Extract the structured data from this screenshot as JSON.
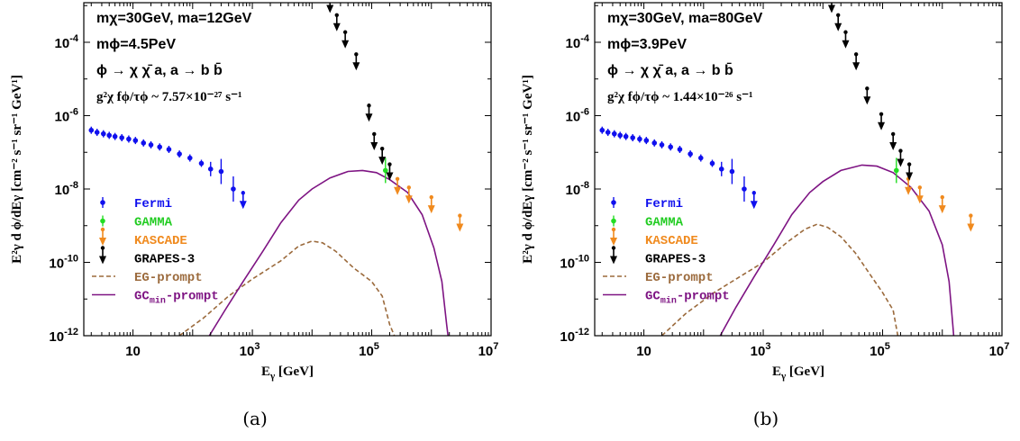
{
  "panel_labels": [
    "(a)",
    "(b)"
  ],
  "chart_data": [
    {
      "type": "scatter",
      "panel": "(a)",
      "xlabel_base": "E",
      "xlabel_sub": "γ",
      "xlabel_unit": "[GeV]",
      "ylabel": "E²γ d ϕ/dEγ [cm⁻² s⁻¹ sr⁻¹ GeV¹]",
      "xscale": "log",
      "yscale": "log",
      "xlim": [
        1.5,
        10000000
      ],
      "ylim": [
        1e-12,
        0.0012
      ],
      "xticks": [
        {
          "v": 10,
          "b": "10",
          "e": ""
        },
        {
          "v": 1000,
          "b": "10",
          "e": "3"
        },
        {
          "v": 100000,
          "b": "10",
          "e": "5"
        },
        {
          "v": 10000000,
          "b": "10",
          "e": "7"
        }
      ],
      "yticks": [
        {
          "v": 1e-12,
          "b": "10",
          "e": "-12"
        },
        {
          "v": 1e-10,
          "b": "10",
          "e": "-10"
        },
        {
          "v": 1e-08,
          "b": "10",
          "e": "-8"
        },
        {
          "v": 1e-06,
          "b": "10",
          "e": "-6"
        },
        {
          "v": 0.0001,
          "b": "10",
          "e": "-4"
        }
      ],
      "annotation": {
        "line1": "mχ=30GeV, ma=12GeV",
        "line2": "mϕ=4.5PeV",
        "line3": "ϕ → χ χ̄ a, a → b b̄",
        "line4": "g²χ fϕ/τϕ ~ 7.57×10⁻²⁷ s⁻¹"
      },
      "legend_position": "lower-left",
      "series": [
        {
          "name": "Fermi",
          "color": "#1010ee",
          "marker": "point-errorbar",
          "points": [
            [
              2,
              4e-07
            ],
            [
              2.5,
              3.5e-07
            ],
            [
              3.2,
              3.2e-07
            ],
            [
              4,
              2.9e-07
            ],
            [
              5,
              2.7e-07
            ],
            [
              6.5,
              2.5e-07
            ],
            [
              8.5,
              2.3e-07
            ],
            [
              11,
              2.1e-07
            ],
            [
              15,
              1.8e-07
            ],
            [
              20,
              1.6e-07
            ],
            [
              28,
              1.4e-07
            ],
            [
              40,
              1.2e-07
            ],
            [
              60,
              9e-08
            ],
            [
              90,
              7e-08
            ],
            [
              140,
              5e-08
            ],
            [
              200,
              3.5e-08
            ],
            [
              300,
              3e-08
            ],
            [
              480,
              1e-08
            ]
          ],
          "upper_limits": [
            [
              700,
              5e-09
            ]
          ]
        },
        {
          "name": "GAMMA",
          "color": "#22dd22",
          "marker": "point-errorbar",
          "points": [
            [
              170000,
              3.2e-08
            ]
          ]
        },
        {
          "name": "KASCADE",
          "color": "#f08a1e",
          "marker": "upper-limit",
          "upper_limits": [
            [
              270000,
              1.2e-08
            ],
            [
              420000,
              7e-09
            ],
            [
              1000000,
              3.8e-09
            ],
            [
              3000000,
              1.2e-09
            ]
          ]
        },
        {
          "name": "GRAPES-3",
          "color": "#000000",
          "marker": "upper-limit",
          "upper_limits": [
            [
              20000,
              0.0011
            ],
            [
              26000,
              0.00035
            ],
            [
              36000,
              0.00012
            ],
            [
              55000,
              3e-05
            ],
            [
              90000,
              1.2e-06
            ],
            [
              110000,
              2e-07
            ],
            [
              150000,
              8e-08
            ],
            [
              200000,
              3e-08
            ]
          ]
        },
        {
          "name": "EG-prompt",
          "color": "#9b6a3c",
          "line": "dashed",
          "points": [
            [
              60,
              1e-12
            ],
            [
              150,
              3e-12
            ],
            [
              400,
              1.2e-11
            ],
            [
              1000,
              3.5e-11
            ],
            [
              3000,
              1.1e-10
            ],
            [
              6000,
              2.8e-10
            ],
            [
              10000,
              3.8e-10
            ],
            [
              15000,
              3.4e-10
            ],
            [
              25000,
              2e-10
            ],
            [
              50000,
              7e-11
            ],
            [
              100000,
              3e-11
            ],
            [
              150000,
              1.2e-11
            ],
            [
              200000,
              2e-12
            ],
            [
              240000,
              1e-12
            ]
          ]
        },
        {
          "name": "GCmin-prompt",
          "color": "#7e1483",
          "line": "solid",
          "points": [
            [
              190,
              1e-12
            ],
            [
              350,
              5e-12
            ],
            [
              700,
              3e-11
            ],
            [
              1500,
              2e-10
            ],
            [
              3000,
              1.2e-09
            ],
            [
              6000,
              5e-09
            ],
            [
              10000,
              1e-08
            ],
            [
              20000,
              2e-08
            ],
            [
              40000,
              3e-08
            ],
            [
              70000,
              3.2e-08
            ],
            [
              120000,
              2.8e-08
            ],
            [
              200000,
              1.8e-08
            ],
            [
              400000,
              8e-09
            ],
            [
              700000,
              2e-09
            ],
            [
              1100000,
              2.5e-10
            ],
            [
              1500000,
              3e-11
            ],
            [
              1800000,
              2e-12
            ],
            [
              1900000,
              1e-12
            ]
          ]
        }
      ]
    },
    {
      "type": "scatter",
      "panel": "(b)",
      "xlabel_base": "E",
      "xlabel_sub": "γ",
      "xlabel_unit": "[GeV]",
      "ylabel": "E²γ d ϕ/dEγ [cm⁻² s⁻¹ sr⁻¹ GeV¹]",
      "xscale": "log",
      "yscale": "log",
      "xlim": [
        1.5,
        10000000
      ],
      "ylim": [
        1e-12,
        0.0012
      ],
      "xticks": [
        {
          "v": 10,
          "b": "10",
          "e": ""
        },
        {
          "v": 1000,
          "b": "10",
          "e": "3"
        },
        {
          "v": 100000,
          "b": "10",
          "e": "5"
        },
        {
          "v": 10000000,
          "b": "10",
          "e": "7"
        }
      ],
      "yticks": [
        {
          "v": 1e-12,
          "b": "10",
          "e": "-12"
        },
        {
          "v": 1e-10,
          "b": "10",
          "e": "-10"
        },
        {
          "v": 1e-08,
          "b": "10",
          "e": "-8"
        },
        {
          "v": 1e-06,
          "b": "10",
          "e": "-6"
        },
        {
          "v": 0.0001,
          "b": "10",
          "e": "-4"
        }
      ],
      "annotation": {
        "line1": "mχ=30GeV, ma=80GeV",
        "line2": "mϕ=3.9PeV",
        "line3": "ϕ → χ χ̄ a, a → b b̄",
        "line4": "g²χ fϕ/τϕ ~ 1.44×10⁻²⁶ s⁻¹"
      },
      "legend_position": "lower-left",
      "series": [
        {
          "name": "Fermi",
          "color": "#1010ee",
          "marker": "point-errorbar",
          "points": [
            [
              2,
              4e-07
            ],
            [
              2.5,
              3.5e-07
            ],
            [
              3.2,
              3.2e-07
            ],
            [
              4,
              2.9e-07
            ],
            [
              5,
              2.7e-07
            ],
            [
              6.5,
              2.5e-07
            ],
            [
              8.5,
              2.3e-07
            ],
            [
              11,
              2.1e-07
            ],
            [
              15,
              1.8e-07
            ],
            [
              20,
              1.6e-07
            ],
            [
              28,
              1.4e-07
            ],
            [
              40,
              1.2e-07
            ],
            [
              60,
              9e-08
            ],
            [
              90,
              7e-08
            ],
            [
              140,
              5e-08
            ],
            [
              200,
              3.5e-08
            ],
            [
              300,
              3e-08
            ],
            [
              480,
              1e-08
            ]
          ],
          "upper_limits": [
            [
              700,
              5e-09
            ]
          ]
        },
        {
          "name": "GAMMA",
          "color": "#22dd22",
          "marker": "point-errorbar",
          "points": [
            [
              170000,
              3.2e-08
            ]
          ]
        },
        {
          "name": "KASCADE",
          "color": "#f08a1e",
          "marker": "upper-limit",
          "upper_limits": [
            [
              270000,
              1.2e-08
            ],
            [
              420000,
              7e-09
            ],
            [
              1000000,
              3.8e-09
            ],
            [
              3000000,
              1.2e-09
            ]
          ]
        },
        {
          "name": "GRAPES-3",
          "color": "#000000",
          "marker": "upper-limit",
          "upper_limits": [
            [
              14000,
              0.0011
            ],
            [
              18000,
              0.00035
            ],
            [
              24000,
              0.00012
            ],
            [
              36000,
              3e-05
            ],
            [
              55000,
              3.5e-06
            ],
            [
              95000,
              7e-07
            ],
            [
              150000,
              2e-07
            ],
            [
              200000,
              7e-08
            ],
            [
              280000,
              3e-08
            ]
          ]
        },
        {
          "name": "EG-prompt",
          "color": "#9b6a3c",
          "line": "dashed",
          "points": [
            [
              20,
              1e-12
            ],
            [
              50,
              4e-12
            ],
            [
              150,
              1.5e-11
            ],
            [
              400,
              4e-11
            ],
            [
              1000,
              1e-10
            ],
            [
              2500,
              3.5e-10
            ],
            [
              5000,
              8e-10
            ],
            [
              8000,
              1.1e-09
            ],
            [
              12000,
              9e-10
            ],
            [
              20000,
              5e-10
            ],
            [
              35000,
              1.8e-10
            ],
            [
              60000,
              5e-11
            ],
            [
              100000,
              1.5e-11
            ],
            [
              150000,
              5e-12
            ],
            [
              180000,
              1e-12
            ]
          ]
        },
        {
          "name": "GCmin-prompt",
          "color": "#7e1483",
          "line": "solid",
          "points": [
            [
              190,
              1e-12
            ],
            [
              350,
              6e-12
            ],
            [
              700,
              4e-11
            ],
            [
              1500,
              3e-10
            ],
            [
              3000,
              2e-09
            ],
            [
              6000,
              8e-09
            ],
            [
              10000,
              1.6e-08
            ],
            [
              20000,
              3.2e-08
            ],
            [
              45000,
              4.5e-08
            ],
            [
              80000,
              4.2e-08
            ],
            [
              150000,
              2.8e-08
            ],
            [
              300000,
              1.1e-08
            ],
            [
              600000,
              2.5e-09
            ],
            [
              1000000,
              3e-10
            ],
            [
              1300000,
              3e-11
            ],
            [
              1500000,
              2e-12
            ],
            [
              1550000,
              1e-12
            ]
          ]
        }
      ]
    }
  ]
}
